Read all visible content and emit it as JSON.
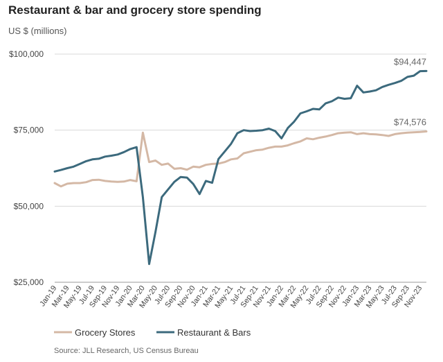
{
  "header": {
    "title": "Restaurant & bar and grocery store spending",
    "units": "US $ (millions)"
  },
  "footer": {
    "source": "Source: JLL Research, US Census Bureau"
  },
  "colors": {
    "grocery": "#d4b8a5",
    "restaurant": "#3c6a7d",
    "grid": "#d8d8d8",
    "axis": "#999999"
  },
  "chart_data": {
    "type": "line",
    "title": "Restaurant & bar and grocery store spending",
    "ylabel": "US $ (millions)",
    "xlabel": "",
    "ylim": [
      25000,
      100000
    ],
    "y_ticks": [
      25000,
      50000,
      75000,
      100000
    ],
    "y_tick_labels": [
      "$25,000",
      "$50,000",
      "$75,000",
      "$100,000"
    ],
    "grid": "horizontal",
    "legend": "bottom-left",
    "x": [
      "Jan-19",
      "Feb-19",
      "Mar-19",
      "Apr-19",
      "May-19",
      "Jun-19",
      "Jul-19",
      "Aug-19",
      "Sep-19",
      "Oct-19",
      "Nov-19",
      "Dec-19",
      "Jan-20",
      "Feb-20",
      "Mar-20",
      "Apr-20",
      "May-20",
      "Jun-20",
      "Jul-20",
      "Aug-20",
      "Sep-20",
      "Oct-20",
      "Nov-20",
      "Dec-20",
      "Jan-21",
      "Feb-21",
      "Mar-21",
      "Apr-21",
      "May-21",
      "Jun-21",
      "Jul-21",
      "Aug-21",
      "Sep-21",
      "Oct-21",
      "Nov-21",
      "Dec-21",
      "Jan-22",
      "Feb-22",
      "Mar-22",
      "Apr-22",
      "May-22",
      "Jun-22",
      "Jul-22",
      "Aug-22",
      "Sep-22",
      "Oct-22",
      "Nov-22",
      "Dec-22",
      "Jan-23",
      "Feb-23",
      "Mar-23",
      "Apr-23",
      "May-23",
      "Jun-23",
      "Jul-23",
      "Aug-23",
      "Sep-23",
      "Oct-23",
      "Nov-23",
      "Dec-23"
    ],
    "x_tick_labels": [
      "Jan-19",
      "Mar-19",
      "May-19",
      "Jul-19",
      "Sep-19",
      "Nov-19",
      "Jan-20",
      "Mar-20",
      "May-20",
      "Jul-20",
      "Sep-20",
      "Nov-20",
      "Jan-21",
      "Mar-21",
      "May-21",
      "Jul-21",
      "Sep-21",
      "Nov-21",
      "Jan-22",
      "Mar-22",
      "May-22",
      "Jul-22",
      "Sep-22",
      "Nov-22",
      "Jan-23",
      "Mar-23",
      "May-23",
      "Jul-23",
      "Sep-23",
      "Nov-23"
    ],
    "series": [
      {
        "name": "Grocery Stores",
        "color": "#d4b8a5",
        "end_label": "$74,576",
        "values": [
          57600,
          56500,
          57400,
          57600,
          57600,
          57900,
          58600,
          58700,
          58300,
          58100,
          58000,
          58100,
          58600,
          58200,
          74200,
          64500,
          65000,
          63600,
          64000,
          62300,
          62500,
          62000,
          63000,
          62800,
          63600,
          63900,
          64000,
          64500,
          65400,
          65700,
          67400,
          67900,
          68400,
          68600,
          69200,
          69600,
          69600,
          70000,
          70700,
          71300,
          72300,
          72000,
          72500,
          72900,
          73400,
          74000,
          74200,
          74300,
          73700,
          74000,
          73700,
          73600,
          73400,
          73100,
          73700,
          74000,
          74200,
          74300,
          74400,
          74576
        ]
      },
      {
        "name": "Restaurant & Bars",
        "color": "#3c6a7d",
        "end_label": "$94,447",
        "values": [
          61400,
          61900,
          62500,
          63000,
          63900,
          64800,
          65400,
          65600,
          66300,
          66600,
          67000,
          67800,
          68800,
          69400,
          53000,
          31000,
          41500,
          53000,
          55500,
          58000,
          59600,
          59400,
          57300,
          54000,
          58300,
          57700,
          65500,
          68000,
          70500,
          74000,
          75000,
          74700,
          74800,
          75000,
          75500,
          74700,
          72300,
          75700,
          77800,
          80500,
          81200,
          82000,
          81800,
          83800,
          84500,
          85700,
          85300,
          85500,
          89600,
          87400,
          87700,
          88100,
          89200,
          89900,
          90500,
          91200,
          92500,
          92900,
          94400,
          94447
        ]
      }
    ]
  }
}
